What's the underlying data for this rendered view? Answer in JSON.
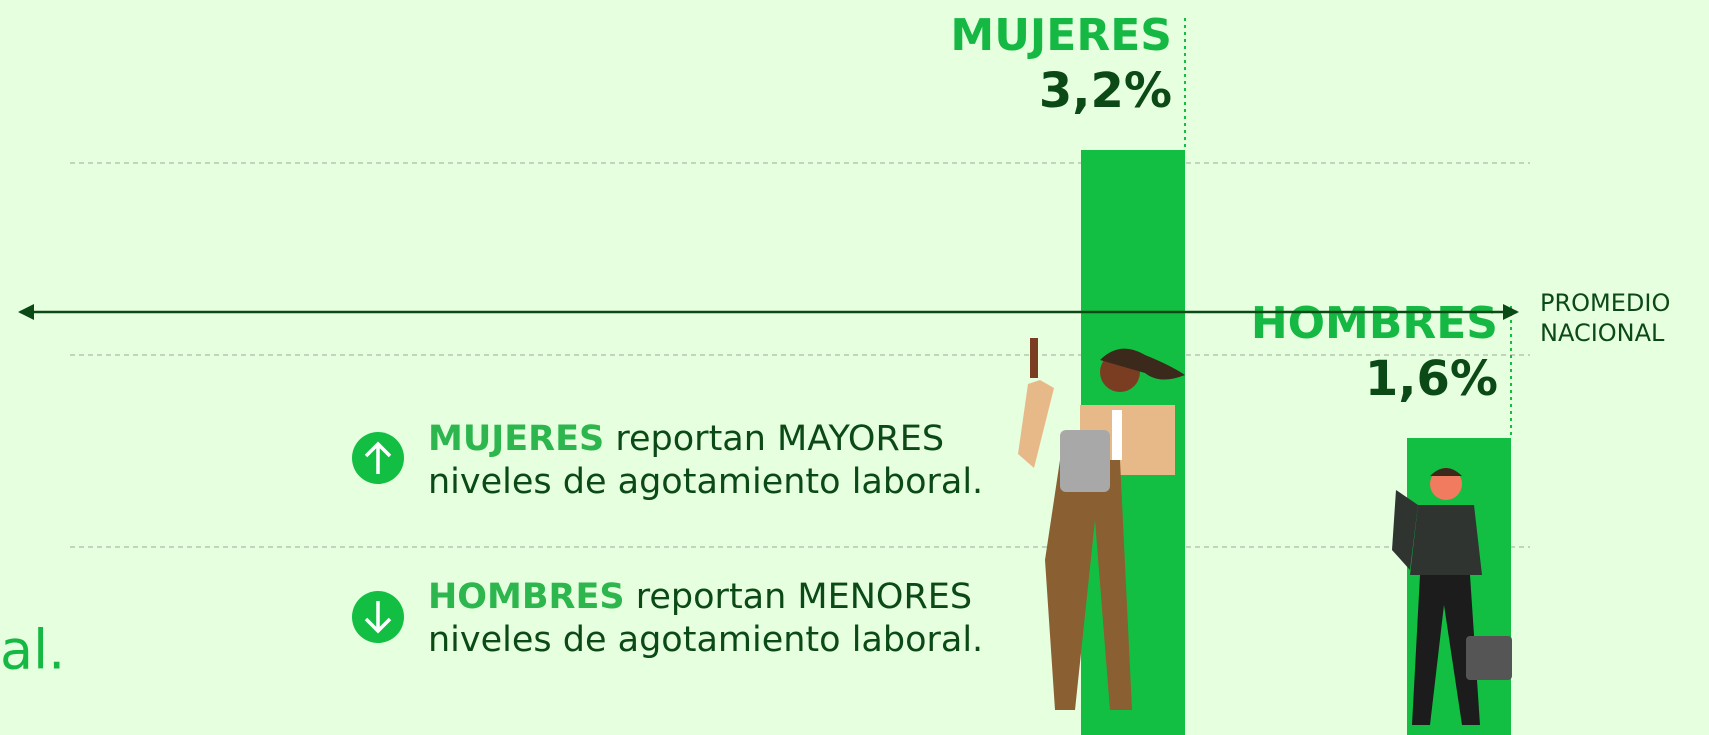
{
  "chart_data": {
    "type": "bar",
    "categories": [
      "MUJERES",
      "HOMBRES"
    ],
    "values": [
      3.2,
      1.6
    ],
    "value_labels": [
      "3,2%",
      "1,6%"
    ],
    "color": "#12bf42",
    "reference": {
      "label": "PROMEDIO NACIONAL",
      "value": 2.3
    },
    "notes": [
      {
        "highlight": "MUJERES",
        "line1": "reportan MAYORES",
        "line2": "niveles de agotamiento laboral."
      },
      {
        "highlight": "HOMBRES",
        "line1": "reportan MENORES",
        "line2": "niveles de agotamiento laboral."
      }
    ],
    "fragment": "al."
  }
}
